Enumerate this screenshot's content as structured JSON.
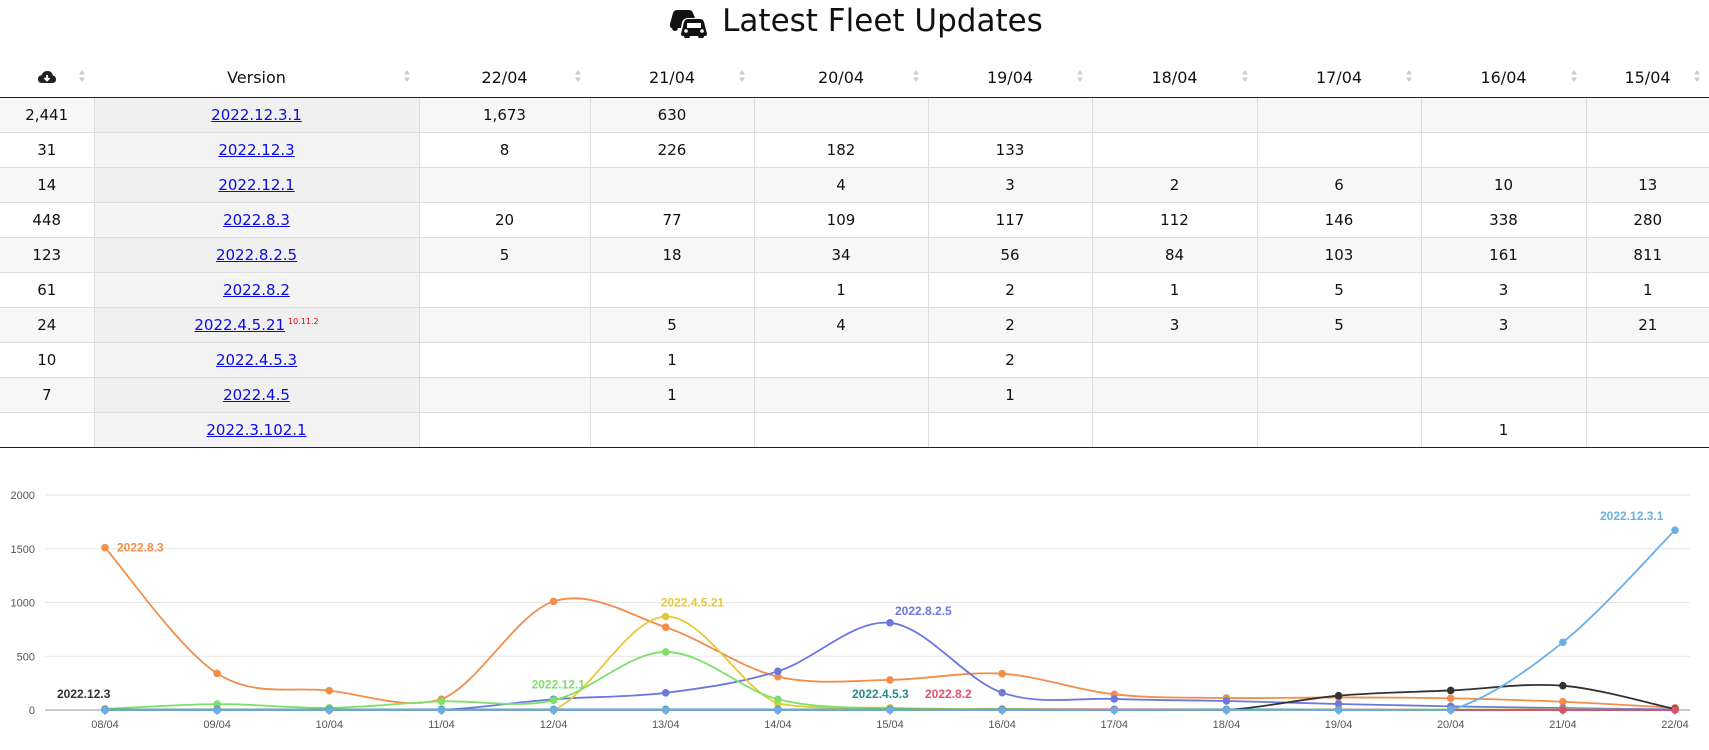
{
  "title": "Latest Fleet Updates",
  "table": {
    "headers": [
      "",
      "Version",
      "22/04",
      "21/04",
      "20/04",
      "19/04",
      "18/04",
      "17/04",
      "16/04",
      "15/04"
    ],
    "rows": [
      {
        "total": "2,441",
        "version": "2022.12.3.1",
        "sub": "",
        "cells": [
          "1,673",
          "630",
          "",
          "",
          "",
          "",
          "",
          ""
        ]
      },
      {
        "total": "31",
        "version": "2022.12.3",
        "sub": "",
        "cells": [
          "8",
          "226",
          "182",
          "133",
          "",
          "",
          "",
          ""
        ]
      },
      {
        "total": "14",
        "version": "2022.12.1",
        "sub": "",
        "cells": [
          "",
          "",
          "4",
          "3",
          "2",
          "6",
          "10",
          "13"
        ]
      },
      {
        "total": "448",
        "version": "2022.8.3",
        "sub": "",
        "cells": [
          "20",
          "77",
          "109",
          "117",
          "112",
          "146",
          "338",
          "280"
        ]
      },
      {
        "total": "123",
        "version": "2022.8.2.5",
        "sub": "",
        "cells": [
          "5",
          "18",
          "34",
          "56",
          "84",
          "103",
          "161",
          "811"
        ]
      },
      {
        "total": "61",
        "version": "2022.8.2",
        "sub": "",
        "cells": [
          "",
          "",
          "1",
          "2",
          "1",
          "5",
          "3",
          "1"
        ]
      },
      {
        "total": "24",
        "version": "2022.4.5.21",
        "sub": "10.11.2",
        "cells": [
          "",
          "5",
          "4",
          "2",
          "3",
          "5",
          "3",
          "21"
        ]
      },
      {
        "total": "10",
        "version": "2022.4.5.3",
        "sub": "",
        "cells": [
          "",
          "1",
          "",
          "2",
          "",
          "",
          "",
          ""
        ]
      },
      {
        "total": "7",
        "version": "2022.4.5",
        "sub": "",
        "cells": [
          "",
          "1",
          "",
          "1",
          "",
          "",
          "",
          ""
        ]
      },
      {
        "total": "",
        "version": "2022.3.102.1",
        "sub": "",
        "cells": [
          "",
          "",
          "",
          "",
          "",
          "",
          "1",
          ""
        ]
      }
    ]
  },
  "chart_data": {
    "type": "line",
    "x": [
      "08/04",
      "09/04",
      "10/04",
      "11/04",
      "12/04",
      "13/04",
      "14/04",
      "15/04",
      "16/04",
      "17/04",
      "18/04",
      "19/04",
      "20/04",
      "21/04",
      "22/04"
    ],
    "ylim": [
      0,
      2000
    ],
    "yticks": [
      0,
      500,
      1000,
      1500,
      2000
    ],
    "grid": true,
    "series": [
      {
        "name": "2022.8.3",
        "color": "#f28e4a",
        "values": [
          1510,
          340,
          180,
          100,
          1010,
          770,
          310,
          280,
          338,
          146,
          112,
          117,
          109,
          77,
          20
        ]
      },
      {
        "name": "2022.8.2.5",
        "color": "#6b78e0",
        "values": [
          0,
          0,
          0,
          0,
          100,
          160,
          360,
          811,
          161,
          103,
          84,
          56,
          34,
          18,
          5
        ]
      },
      {
        "name": "2022.4.5.21",
        "color": "#e6c93a",
        "values": [
          0,
          0,
          0,
          0,
          0,
          870,
          60,
          21,
          3,
          5,
          3,
          2,
          4,
          5,
          0
        ]
      },
      {
        "name": "2022.12.1",
        "color": "#7ee06a",
        "values": [
          10,
          55,
          20,
          80,
          90,
          540,
          100,
          13,
          10,
          6,
          2,
          3,
          4,
          0,
          0
        ]
      },
      {
        "name": "2022.12.3",
        "color": "#333333",
        "values": [
          0,
          0,
          0,
          0,
          0,
          0,
          0,
          0,
          0,
          0,
          0,
          133,
          182,
          226,
          8
        ]
      },
      {
        "name": "2022.4.5.3",
        "color": "#2b8a8a",
        "values": [
          5,
          5,
          5,
          5,
          5,
          5,
          5,
          5,
          5,
          5,
          5,
          2,
          0,
          1,
          0
        ]
      },
      {
        "name": "2022.8.2",
        "color": "#e0506a",
        "values": [
          0,
          0,
          0,
          0,
          0,
          0,
          0,
          1,
          3,
          5,
          1,
          2,
          1,
          0,
          0
        ]
      },
      {
        "name": "2022.12.3.1",
        "color": "#6aaee6",
        "values": [
          0,
          0,
          0,
          0,
          0,
          0,
          0,
          0,
          0,
          0,
          0,
          0,
          0,
          630,
          1673
        ]
      }
    ],
    "labels": [
      {
        "series": "2022.12.3",
        "text": "2022.12.3",
        "at_index": 0
      },
      {
        "series": "2022.8.3",
        "text": "2022.8.3",
        "at_index": 0
      },
      {
        "series": "2022.12.1",
        "text": "2022.12.1",
        "at_index": 4
      },
      {
        "series": "2022.4.5.21",
        "text": "2022.4.5.21",
        "at_index": 5
      },
      {
        "series": "2022.4.5.3",
        "text": "2022.4.5.3",
        "at_index": 7
      },
      {
        "series": "2022.8.2",
        "text": "2022.8.2",
        "at_index": 7
      },
      {
        "series": "2022.8.2.5",
        "text": "2022.8.2.5",
        "at_index": 7
      },
      {
        "series": "2022.12.3.1",
        "text": "2022.12.3.1",
        "at_index": 14
      }
    ]
  }
}
